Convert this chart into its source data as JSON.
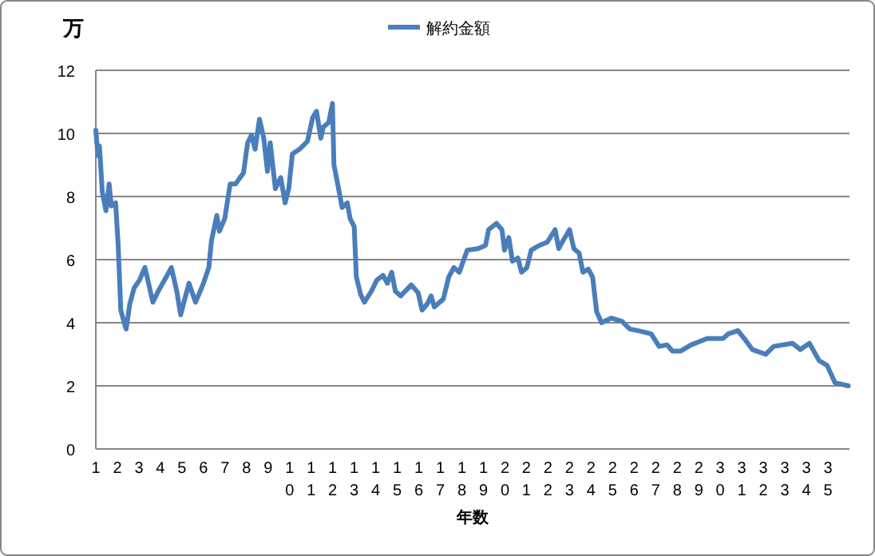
{
  "chart_data": {
    "type": "line",
    "xlabel": "年数",
    "ylabel": "万",
    "legend": "top",
    "grid": "y",
    "marker": "none",
    "line_style": "solid",
    "xlim": [
      1,
      36
    ],
    "xticks": [
      1,
      2,
      3,
      4,
      5,
      6,
      7,
      8,
      9,
      10,
      11,
      12,
      13,
      14,
      15,
      16,
      17,
      18,
      19,
      20,
      21,
      22,
      23,
      24,
      25,
      26,
      27,
      28,
      29,
      30,
      31,
      32,
      33,
      34,
      35
    ],
    "ylim": [
      0,
      12
    ],
    "yticks": [
      0,
      2,
      4,
      6,
      8,
      10,
      12
    ],
    "series": [
      {
        "name": "解約金額",
        "color": "#4a7ebb",
        "x": [
          1,
          1.1,
          1.17,
          1.3,
          1.47,
          1.62,
          1.72,
          1.92,
          2.04,
          2.16,
          2.36,
          2.41,
          2.58,
          2.78,
          3.03,
          3.28,
          3.45,
          3.65,
          3.9,
          4.27,
          4.51,
          4.76,
          4.94,
          5.13,
          5.33,
          5.63,
          6.0,
          6.25,
          6.37,
          6.62,
          6.74,
          6.99,
          7.24,
          7.49,
          7.86,
          8.05,
          8.23,
          8.4,
          8.6,
          8.8,
          8.97,
          9.1,
          9.34,
          9.59,
          9.79,
          9.96,
          10.13,
          10.46,
          10.83,
          11.07,
          11.25,
          11.45,
          11.57,
          11.82,
          11.99,
          12.06,
          12.26,
          12.44,
          12.68,
          12.81,
          13.0,
          13.1,
          13.3,
          13.47,
          13.8,
          14.05,
          14.34,
          14.54,
          14.74,
          14.91,
          15.16,
          15.65,
          15.97,
          16.15,
          16.4,
          16.57,
          16.72,
          17.14,
          17.39,
          17.63,
          17.88,
          18.25,
          18.75,
          19.1,
          19.24,
          19.61,
          19.86,
          19.98,
          20.18,
          20.35,
          20.6,
          20.77,
          21.02,
          21.22,
          21.59,
          21.96,
          22.33,
          22.5,
          22.7,
          23.0,
          23.2,
          23.45,
          23.62,
          23.87,
          24.07,
          24.26,
          24.49,
          24.93,
          25.43,
          25.8,
          26.17,
          26.79,
          27.16,
          27.53,
          27.78,
          28.15,
          28.65,
          29.02,
          29.39,
          30.13,
          30.38,
          30.82,
          31.17,
          31.49,
          32.11,
          32.48,
          33.35,
          33.72,
          34.14,
          34.59,
          34.96,
          35.33,
          35.95
        ],
        "values": [
          10.1,
          9.3,
          9.6,
          8.15,
          7.55,
          8.4,
          7.7,
          7.8,
          6.45,
          4.4,
          3.9,
          3.8,
          4.6,
          5.1,
          5.35,
          5.75,
          5.25,
          4.65,
          5.0,
          5.45,
          5.75,
          5.0,
          4.25,
          4.75,
          5.25,
          4.65,
          5.25,
          5.75,
          6.6,
          7.4,
          6.9,
          7.3,
          8.4,
          8.4,
          8.75,
          9.7,
          9.95,
          9.5,
          10.45,
          9.85,
          8.8,
          9.7,
          8.25,
          8.6,
          7.8,
          8.25,
          9.35,
          9.5,
          9.75,
          10.5,
          10.7,
          9.85,
          10.2,
          10.35,
          10.95,
          9.0,
          8.3,
          7.65,
          7.8,
          7.3,
          7.05,
          5.45,
          4.9,
          4.65,
          5.0,
          5.35,
          5.5,
          5.25,
          5.6,
          5.0,
          4.85,
          5.2,
          4.95,
          4.4,
          4.6,
          4.85,
          4.5,
          4.75,
          5.45,
          5.75,
          5.6,
          6.3,
          6.35,
          6.45,
          6.95,
          7.15,
          6.95,
          6.3,
          6.7,
          5.95,
          6.05,
          5.6,
          5.75,
          6.3,
          6.45,
          6.55,
          6.95,
          6.35,
          6.6,
          6.95,
          6.35,
          6.2,
          5.6,
          5.7,
          5.45,
          4.35,
          4.0,
          4.15,
          4.05,
          3.8,
          3.75,
          3.65,
          3.25,
          3.3,
          3.1,
          3.1,
          3.3,
          3.4,
          3.5,
          3.5,
          3.65,
          3.75,
          3.45,
          3.15,
          3.0,
          3.25,
          3.35,
          3.15,
          3.35,
          2.8,
          2.65,
          2.1,
          2.0
        ]
      }
    ]
  }
}
